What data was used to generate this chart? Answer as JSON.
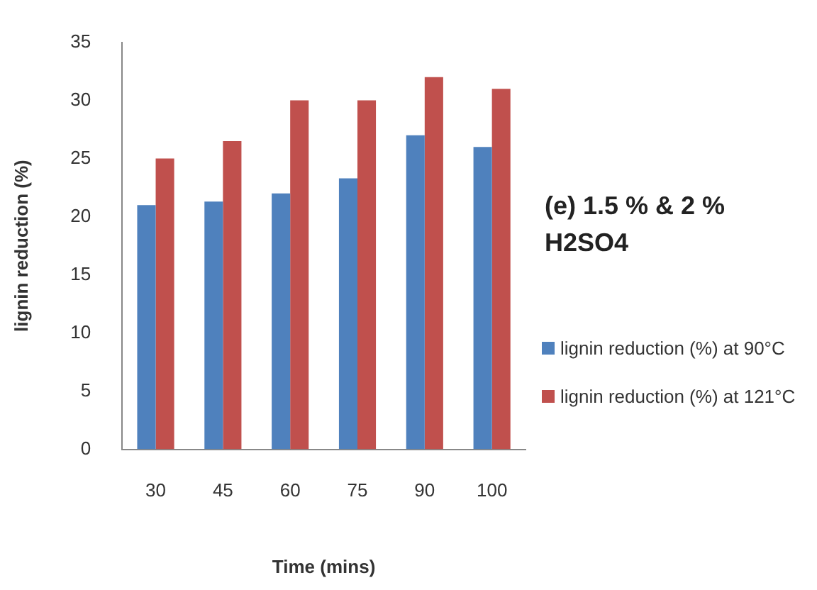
{
  "chart_data": {
    "type": "bar",
    "title": "(e) 1.5 % & 2 % H2SO4",
    "xlabel": "Time (mins)",
    "ylabel": "lignin reduction (%)",
    "categories": [
      "30",
      "45",
      "60",
      "75",
      "90",
      "100"
    ],
    "series": [
      {
        "name": "lignin reduction (%) at 90°C",
        "color": "#4f81bd",
        "values": [
          21,
          21.3,
          22,
          23.3,
          27,
          26
        ]
      },
      {
        "name": "lignin reduction (%) at 121°C",
        "color": "#c0504d",
        "values": [
          25,
          26.5,
          30,
          30,
          32,
          31
        ]
      }
    ],
    "ylim": [
      0,
      35
    ],
    "yticks": [
      0,
      5,
      10,
      15,
      20,
      25,
      30,
      35
    ],
    "grid": false,
    "legend": "right"
  }
}
